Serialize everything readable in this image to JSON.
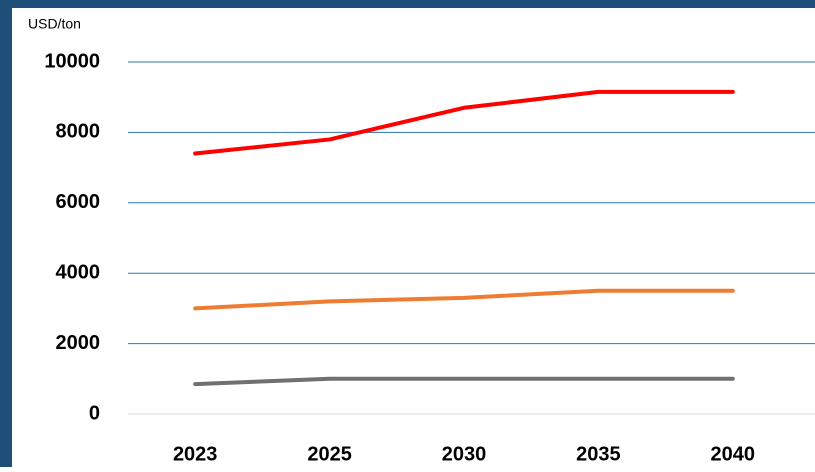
{
  "chart_data": {
    "type": "line",
    "y_axis_label": "USD/ton",
    "categories": [
      "2023",
      "2025",
      "2030",
      "2035",
      "2040"
    ],
    "series": [
      {
        "color": "#ff0000",
        "values": [
          7400,
          7800,
          8700,
          9150,
          9150
        ]
      },
      {
        "color": "#ed7d31",
        "values": [
          3000,
          3200,
          3300,
          3500,
          3500
        ]
      },
      {
        "color": "#707070",
        "values": [
          850,
          1000,
          1000,
          1000,
          1000
        ]
      }
    ],
    "ylim": [
      0,
      10000
    ],
    "yticks": [
      0,
      2000,
      4000,
      6000,
      8000,
      10000
    ],
    "grid": true
  }
}
